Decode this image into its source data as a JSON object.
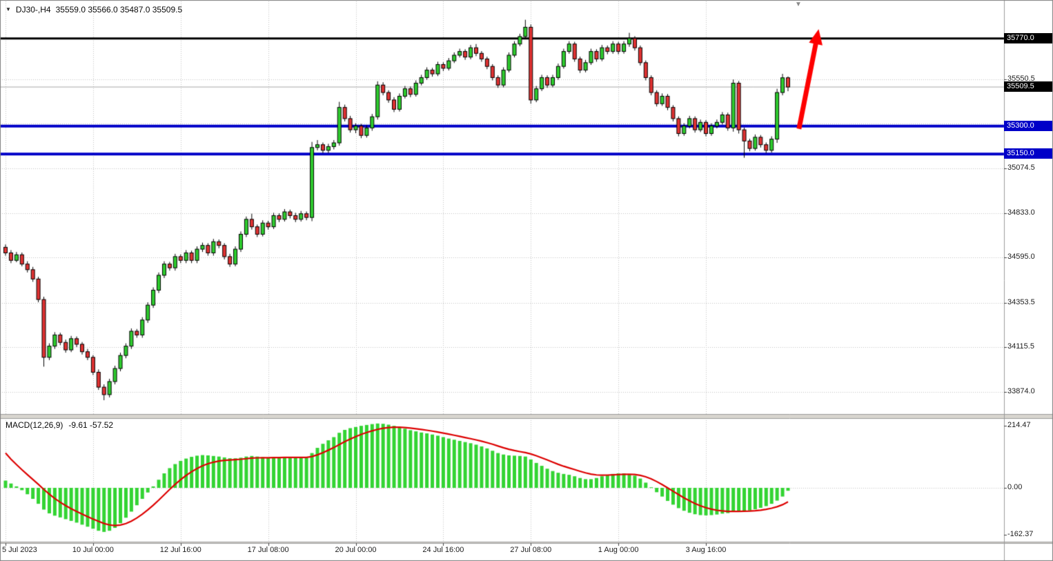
{
  "header": {
    "symbol_period": "DJ30-,H4",
    "ohlc": "35559.0 35566.0 35487.0 35509.5"
  },
  "icons": {
    "header_triangle": "▼",
    "shift_marker": "▼"
  },
  "colors": {
    "up": "#2ecc2e",
    "down": "#e03232",
    "candle_border": "#000000",
    "grid": "#c4c4c4",
    "level_black": "#000000",
    "level_blue": "#0000c8",
    "bid_line": "#a8a8a8",
    "macd_hist": "#33d433",
    "macd_signal": "#dd0000",
    "arrow": "#fe0000",
    "chrome": "#9a9a9a",
    "divider": "#d8d5cf"
  },
  "price_axis": {
    "ticks": [
      {
        "text": "35550.5",
        "value": 35550.5
      },
      {
        "text": "35074.5",
        "value": 35074.5
      },
      {
        "text": "34833.0",
        "value": 34833.0
      },
      {
        "text": "34595.0",
        "value": 34595.0
      },
      {
        "text": "34353.5",
        "value": 34353.5
      },
      {
        "text": "34115.5",
        "value": 34115.5
      },
      {
        "text": "33874.0",
        "value": 33874.0
      }
    ],
    "grid_only_ticks": [
      35312.5
    ],
    "badges": [
      {
        "text": "35770.0",
        "price": 35770.0,
        "bg": "#000000"
      },
      {
        "text": "35509.5",
        "price": 35509.5,
        "bg": "#000000"
      },
      {
        "text": "35300.0",
        "price": 35300.0,
        "bg": "#0000c8"
      },
      {
        "text": "35150.0",
        "price": 35150.0,
        "bg": "#0000c8"
      }
    ]
  },
  "macd_axis": {
    "labels": [
      {
        "text": "214.47",
        "value": 214.47
      },
      {
        "text": "0.00",
        "value": 0
      },
      {
        "text": "-162.37",
        "value": -162.37
      }
    ]
  },
  "time_axis": {
    "labels": [
      {
        "text": "5 Jul 2023",
        "bar": 0
      },
      {
        "text": "10 Jul 00:00",
        "bar": 16
      },
      {
        "text": "12 Jul 16:00",
        "bar": 32
      },
      {
        "text": "17 Jul 08:00",
        "bar": 48
      },
      {
        "text": "20 Jul 00:00",
        "bar": 64
      },
      {
        "text": "24 Jul 16:00",
        "bar": 80
      },
      {
        "text": "27 Jul 08:00",
        "bar": 96
      },
      {
        "text": "1 Aug 00:00",
        "bar": 112
      },
      {
        "text": "3 Aug 16:00",
        "bar": 128
      }
    ]
  },
  "macd_panel": {
    "label": "MACD(12,26,9)",
    "values": "-9.61 -57.52"
  },
  "annotations": {
    "arrow": {
      "from_bar": 145,
      "from_price": 35285,
      "to_bar": 148.6,
      "to_price": 35820,
      "width": 7
    }
  },
  "chart_data": {
    "type": "candlestick",
    "symbol": "DJ30-",
    "timeframe": "H4",
    "current_ohlc": {
      "open": 35559.0,
      "high": 35566.0,
      "low": 35487.0,
      "close": 35509.5
    },
    "visible_price_range": [
      33750,
      35980
    ],
    "horizontal_levels": [
      {
        "price": 35770.0,
        "color": "#000000",
        "width": 3
      },
      {
        "price": 35300.0,
        "color": "#0000c8",
        "width": 4
      },
      {
        "price": 35150.0,
        "color": "#0000c8",
        "width": 4
      },
      {
        "price": 35509.5,
        "color": "#a8a8a8",
        "width": 1
      }
    ],
    "candles": [
      [
        34650,
        34665,
        34605,
        34620
      ],
      [
        34620,
        34635,
        34565,
        34580
      ],
      [
        34580,
        34625,
        34570,
        34610
      ],
      [
        34610,
        34622,
        34548,
        34560
      ],
      [
        34560,
        34575,
        34515,
        34530
      ],
      [
        34530,
        34545,
        34465,
        34480
      ],
      [
        34480,
        34492,
        34355,
        34370
      ],
      [
        34370,
        34385,
        34010,
        34060
      ],
      [
        34060,
        34135,
        34045,
        34120
      ],
      [
        34120,
        34195,
        34105,
        34180
      ],
      [
        34180,
        34192,
        34125,
        34140
      ],
      [
        34140,
        34155,
        34085,
        34100
      ],
      [
        34100,
        34175,
        34088,
        34160
      ],
      [
        34160,
        34172,
        34115,
        34130
      ],
      [
        34130,
        34142,
        34075,
        34090
      ],
      [
        34090,
        34105,
        34045,
        34060
      ],
      [
        34060,
        34072,
        33965,
        33980
      ],
      [
        33980,
        33995,
        33885,
        33900
      ],
      [
        33900,
        33915,
        33830,
        33860
      ],
      [
        33860,
        33945,
        33845,
        33930
      ],
      [
        33930,
        34015,
        33915,
        34000
      ],
      [
        34000,
        34085,
        33985,
        34070
      ],
      [
        34070,
        34135,
        34055,
        34120
      ],
      [
        34120,
        34215,
        34105,
        34200
      ],
      [
        34200,
        34212,
        34165,
        34180
      ],
      [
        34180,
        34275,
        34165,
        34260
      ],
      [
        34260,
        34355,
        34245,
        34340
      ],
      [
        34340,
        34435,
        34325,
        34420
      ],
      [
        34420,
        34515,
        34405,
        34500
      ],
      [
        34500,
        34575,
        34485,
        34560
      ],
      [
        34560,
        34572,
        34525,
        34540
      ],
      [
        34540,
        34615,
        34525,
        34600
      ],
      [
        34600,
        34612,
        34565,
        34580
      ],
      [
        34580,
        34635,
        34565,
        34620
      ],
      [
        34620,
        34632,
        34565,
        34580
      ],
      [
        34580,
        34655,
        34565,
        34640
      ],
      [
        34640,
        34675,
        34625,
        34660
      ],
      [
        34660,
        34672,
        34605,
        34620
      ],
      [
        34620,
        34695,
        34605,
        34680
      ],
      [
        34680,
        34692,
        34645,
        34660
      ],
      [
        34660,
        34672,
        34585,
        34600
      ],
      [
        34600,
        34615,
        34545,
        34560
      ],
      [
        34560,
        34655,
        34548,
        34640
      ],
      [
        34640,
        34735,
        34625,
        34720
      ],
      [
        34720,
        34815,
        34705,
        34800
      ],
      [
        34800,
        34830,
        34745,
        34760
      ],
      [
        34760,
        34772,
        34705,
        34720
      ],
      [
        34720,
        34795,
        34708,
        34780
      ],
      [
        34780,
        34792,
        34745,
        34760
      ],
      [
        34760,
        34835,
        34748,
        34820
      ],
      [
        34820,
        34832,
        34785,
        34800
      ],
      [
        34800,
        34855,
        34788,
        34840
      ],
      [
        34840,
        34852,
        34805,
        34820
      ],
      [
        34820,
        34835,
        34785,
        34800
      ],
      [
        34800,
        34845,
        34788,
        34830
      ],
      [
        34830,
        34842,
        34795,
        34810
      ],
      [
        34810,
        35215,
        34790,
        35185
      ],
      [
        35185,
        35225,
        35170,
        35200
      ],
      [
        35200,
        35212,
        35155,
        35170
      ],
      [
        35170,
        35205,
        35155,
        35190
      ],
      [
        35190,
        35225,
        35175,
        35210
      ],
      [
        35210,
        35430,
        35195,
        35400
      ],
      [
        35400,
        35415,
        35325,
        35340
      ],
      [
        35340,
        35355,
        35265,
        35280
      ],
      [
        35280,
        35315,
        35262,
        35300
      ],
      [
        35300,
        35312,
        35235,
        35250
      ],
      [
        35250,
        35305,
        35238,
        35290
      ],
      [
        35290,
        35365,
        35275,
        35350
      ],
      [
        35350,
        35540,
        35335,
        35520
      ],
      [
        35520,
        35535,
        35465,
        35480
      ],
      [
        35480,
        35492,
        35425,
        35440
      ],
      [
        35440,
        35455,
        35375,
        35390
      ],
      [
        35390,
        35475,
        35378,
        35460
      ],
      [
        35460,
        35515,
        35448,
        35500
      ],
      [
        35500,
        35512,
        35455,
        35470
      ],
      [
        35470,
        35545,
        35458,
        35530
      ],
      [
        35530,
        35575,
        35518,
        35560
      ],
      [
        35560,
        35615,
        35548,
        35600
      ],
      [
        35600,
        35612,
        35565,
        35580
      ],
      [
        35580,
        35645,
        35568,
        35630
      ],
      [
        35630,
        35642,
        35595,
        35610
      ],
      [
        35610,
        35665,
        35598,
        35650
      ],
      [
        35650,
        35695,
        35638,
        35680
      ],
      [
        35680,
        35715,
        35668,
        35700
      ],
      [
        35700,
        35712,
        35655,
        35670
      ],
      [
        35670,
        35735,
        35658,
        35720
      ],
      [
        35720,
        35740,
        35675,
        35690
      ],
      [
        35690,
        35702,
        35645,
        35660
      ],
      [
        35660,
        35672,
        35605,
        35620
      ],
      [
        35620,
        35632,
        35545,
        35560
      ],
      [
        35560,
        35572,
        35505,
        35520
      ],
      [
        35520,
        35615,
        35508,
        35600
      ],
      [
        35600,
        35695,
        35588,
        35680
      ],
      [
        35680,
        35755,
        35668,
        35740
      ],
      [
        35740,
        35795,
        35728,
        35780
      ],
      [
        35780,
        35870,
        35765,
        35830
      ],
      [
        35830,
        35845,
        35420,
        35440
      ],
      [
        35440,
        35515,
        35428,
        35500
      ],
      [
        35500,
        35575,
        35488,
        35560
      ],
      [
        35560,
        35572,
        35505,
        35520
      ],
      [
        35520,
        35575,
        35508,
        35560
      ],
      [
        35560,
        35635,
        35548,
        35620
      ],
      [
        35620,
        35715,
        35608,
        35700
      ],
      [
        35700,
        35755,
        35688,
        35740
      ],
      [
        35740,
        35752,
        35645,
        35660
      ],
      [
        35660,
        35672,
        35585,
        35600
      ],
      [
        35600,
        35655,
        35588,
        35640
      ],
      [
        35640,
        35715,
        35628,
        35700
      ],
      [
        35700,
        35712,
        35645,
        35660
      ],
      [
        35660,
        35735,
        35648,
        35720
      ],
      [
        35720,
        35732,
        35685,
        35700
      ],
      [
        35700,
        35755,
        35688,
        35740
      ],
      [
        35740,
        35752,
        35685,
        35700
      ],
      [
        35700,
        35755,
        35688,
        35740
      ],
      [
        35740,
        35800,
        35725,
        35770
      ],
      [
        35770,
        35782,
        35705,
        35720
      ],
      [
        35720,
        35732,
        35625,
        35640
      ],
      [
        35640,
        35652,
        35545,
        35560
      ],
      [
        35560,
        35572,
        35465,
        35480
      ],
      [
        35480,
        35492,
        35405,
        35420
      ],
      [
        35420,
        35475,
        35408,
        35460
      ],
      [
        35460,
        35472,
        35385,
        35400
      ],
      [
        35400,
        35412,
        35325,
        35340
      ],
      [
        35340,
        35352,
        35245,
        35260
      ],
      [
        35260,
        35315,
        35248,
        35300
      ],
      [
        35300,
        35355,
        35288,
        35340
      ],
      [
        35340,
        35352,
        35265,
        35280
      ],
      [
        35280,
        35335,
        35268,
        35320
      ],
      [
        35320,
        35332,
        35245,
        35260
      ],
      [
        35260,
        35315,
        35248,
        35300
      ],
      [
        35300,
        35335,
        35288,
        35320
      ],
      [
        35320,
        35375,
        35308,
        35360
      ],
      [
        35360,
        35372,
        35275,
        35290
      ],
      [
        35290,
        35550,
        35270,
        35530
      ],
      [
        35530,
        35542,
        35260,
        35280
      ],
      [
        35280,
        35292,
        35130,
        35220
      ],
      [
        35220,
        35232,
        35165,
        35180
      ],
      [
        35180,
        35255,
        35168,
        35240
      ],
      [
        35240,
        35252,
        35185,
        35200
      ],
      [
        35200,
        35212,
        35155,
        35170
      ],
      [
        35170,
        35245,
        35158,
        35230
      ],
      [
        35230,
        35500,
        35210,
        35480
      ],
      [
        35480,
        35580,
        35465,
        35559
      ],
      [
        35559,
        35566,
        35487,
        35509.5
      ]
    ],
    "macd": {
      "label": "MACD(12,26,9)",
      "macd_value": -9.61,
      "signal_value": -57.52,
      "axis_ticks": [
        214.47,
        0,
        -162.37
      ],
      "signal_seed": 120,
      "histogram": [
        25,
        15,
        5,
        -8,
        -22,
        -38,
        -55,
        -75,
        -88,
        -96,
        -102,
        -108,
        -114,
        -120,
        -127,
        -134,
        -141,
        -148,
        -152,
        -148,
        -138,
        -122,
        -103,
        -82,
        -60,
        -38,
        -16,
        5,
        28,
        50,
        68,
        82,
        93,
        101,
        107,
        111,
        113,
        112,
        110,
        108,
        105,
        102,
        102,
        104,
        108,
        110,
        108,
        106,
        104,
        105,
        106,
        107,
        106,
        105,
        105,
        104,
        120,
        138,
        152,
        164,
        175,
        190,
        200,
        206,
        210,
        214,
        217,
        220,
        222,
        221,
        218,
        214,
        209,
        204,
        199,
        195,
        191,
        188,
        184,
        180,
        175,
        170,
        166,
        162,
        158,
        154,
        149,
        143,
        136,
        128,
        120,
        115,
        112,
        111,
        110,
        108,
        98,
        86,
        76,
        66,
        58,
        52,
        48,
        45,
        40,
        34,
        30,
        30,
        34,
        40,
        45,
        48,
        50,
        50,
        48,
        42,
        32,
        18,
        2,
        -15,
        -30,
        -45,
        -58,
        -70,
        -79,
        -86,
        -91,
        -94,
        -95,
        -94,
        -92,
        -89,
        -87,
        -82,
        -80,
        -80,
        -78,
        -74,
        -69,
        -63,
        -55,
        -44,
        -30,
        -10
      ]
    }
  }
}
